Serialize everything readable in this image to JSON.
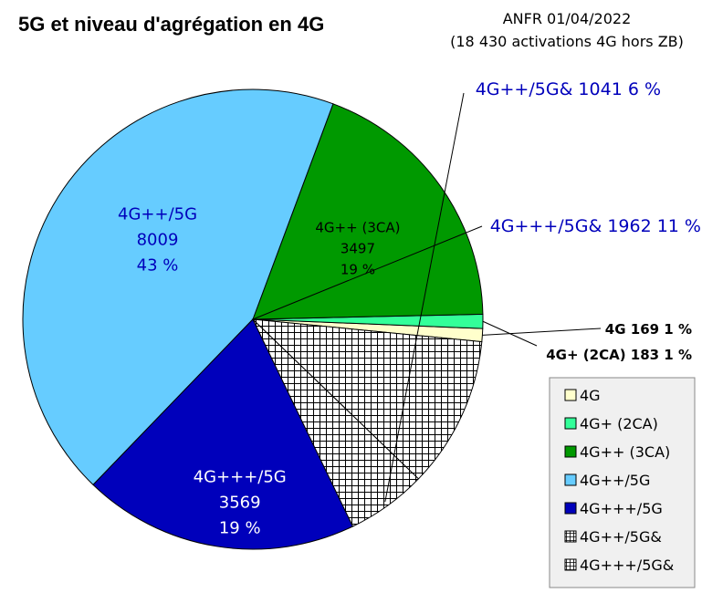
{
  "chart_data": {
    "type": "pie",
    "title": "5G et niveau d'agrégation en 4G",
    "subtitle": [
      "ANFR 01/04/2022",
      "(18 430 activations 4G hors ZB)"
    ],
    "slices": [
      {
        "name": "4G",
        "value": 169,
        "pct": "1 %",
        "color": "#ffffcc",
        "pattern": "none",
        "label": [
          "4G 169 1 %"
        ],
        "label_style": "outside-black"
      },
      {
        "name": "4G+ (2CA)",
        "value": 183,
        "pct": "1 %",
        "color": "#33ff99",
        "pattern": "none",
        "label": [
          "4G+ (2CA) 183 1 %"
        ],
        "label_style": "outside-black"
      },
      {
        "name": "4G++ (3CA)",
        "value": 3497,
        "pct": "19 %",
        "color": "#009900",
        "pattern": "none",
        "label": [
          "4G++ (3CA)",
          "3497",
          "19 %"
        ],
        "label_style": "inside-small"
      },
      {
        "name": "4G++/5G",
        "value": 8009,
        "pct": "43 %",
        "color": "#66ccff",
        "pattern": "none",
        "label": [
          "4G++/5G",
          "8009",
          "43 %"
        ],
        "label_style": "inside-blue"
      },
      {
        "name": "4G+++/5G",
        "value": 3569,
        "pct": "19 %",
        "color": "#0000bb",
        "pattern": "none",
        "label": [
          "4G+++/5G",
          "3569",
          "19 %"
        ],
        "label_style": "inside-white"
      },
      {
        "name": "4G++/5G&",
        "value": 1041,
        "pct": "6 %",
        "color": "#ffffff",
        "pattern": "grid",
        "label": [
          "4G++/5G& 1041 6 %"
        ],
        "label_style": "outside-blue"
      },
      {
        "name": "4G+++/5G&",
        "value": 1962,
        "pct": "11 %",
        "color": "#ffffff",
        "pattern": "grid",
        "label": [
          "4G+++/5G& 1962 11 %"
        ],
        "label_style": "outside-blue"
      }
    ],
    "legend": {
      "placement": "bottom-right",
      "entries": [
        "4G",
        "4G+ (2CA)",
        "4G++ (3CA)",
        "4G++/5G",
        "4G+++/5G",
        "4G++/5G&",
        "4G+++/5G&"
      ]
    },
    "colors": {
      "blue_text": "#0000bb",
      "legend_bg": "#f0f0f0",
      "legend_border": "#888888"
    }
  }
}
